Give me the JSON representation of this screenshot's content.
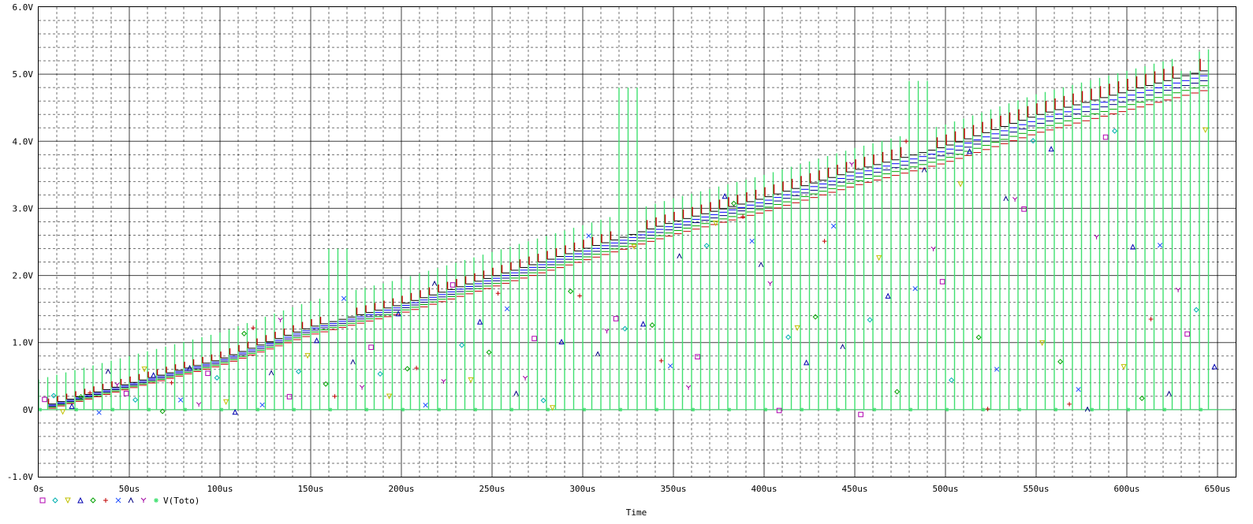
{
  "chart_data": {
    "type": "line",
    "xlabel": "Time",
    "ylabel": "",
    "xlim": [
      0,
      660
    ],
    "ylim": [
      -1.0,
      6.0
    ],
    "grid": true,
    "x_ticks": [
      0,
      50,
      100,
      150,
      200,
      250,
      300,
      350,
      400,
      450,
      500,
      550,
      600,
      650
    ],
    "x_tick_labels": [
      "0s",
      "50us",
      "100us",
      "150us",
      "200us",
      "250us",
      "300us",
      "350us",
      "400us",
      "450us",
      "500us",
      "550us",
      "600us",
      "650us"
    ],
    "y_ticks": [
      -1.0,
      0.0,
      1.0,
      2.0,
      3.0,
      4.0,
      5.0,
      6.0
    ],
    "y_tick_labels": [
      "-1.0V",
      "0V",
      "1.0V",
      "2.0V",
      "3.0V",
      "4.0V",
      "5.0V",
      "6.0V"
    ],
    "legend_position": "bottom-left",
    "series": [
      {
        "name": "",
        "symbol": "square",
        "color": "#b000b0"
      },
      {
        "name": "",
        "symbol": "diamond",
        "color": "#00b0b0"
      },
      {
        "name": "",
        "symbol": "triangle-down",
        "color": "#c0c000"
      },
      {
        "name": "",
        "symbol": "triangle-up",
        "color": "#0000b0"
      },
      {
        "name": "",
        "symbol": "diamond",
        "color": "#00a000"
      },
      {
        "name": "",
        "symbol": "plus",
        "color": "#c00000"
      },
      {
        "name": "",
        "symbol": "x",
        "color": "#2050ff"
      },
      {
        "name": "",
        "symbol": "lambda",
        "color": "#000080"
      },
      {
        "name": "",
        "symbol": "y",
        "color": "#a000a0"
      },
      {
        "name": "V(Toto)",
        "symbol": "star",
        "color": "#40e070"
      }
    ],
    "waveform": {
      "pulse_period_us": 5,
      "staircase_start_V": 0.0,
      "staircase_end_V": 4.92,
      "staircase_end_us": 645,
      "overshoot_regions": [
        {
          "from_us": 160,
          "to_us": 170,
          "peak_V": 2.4
        },
        {
          "from_us": 320,
          "to_us": 330,
          "peak_V": 4.8
        },
        {
          "from_us": 480,
          "to_us": 490,
          "peak_V": 4.9
        },
        {
          "from_us": 630,
          "to_us": 635,
          "peak_V": 5.05
        }
      ],
      "glitch_markers_V": [
        0.0,
        0.4,
        0.8,
        1.2,
        1.6,
        2.0,
        2.4,
        2.8,
        3.2,
        3.6,
        4.0,
        4.4
      ]
    },
    "step_level_points": [
      {
        "x": 0,
        "y": 0.0
      },
      {
        "x": 50,
        "y": 0.35
      },
      {
        "x": 100,
        "y": 0.7
      },
      {
        "x": 150,
        "y": 1.17
      },
      {
        "x": 200,
        "y": 1.5
      },
      {
        "x": 250,
        "y": 1.9
      },
      {
        "x": 300,
        "y": 2.3
      },
      {
        "x": 350,
        "y": 2.7
      },
      {
        "x": 400,
        "y": 3.05
      },
      {
        "x": 450,
        "y": 3.45
      },
      {
        "x": 500,
        "y": 3.8
      },
      {
        "x": 550,
        "y": 4.25
      },
      {
        "x": 600,
        "y": 4.6
      },
      {
        "x": 645,
        "y": 4.92
      }
    ]
  },
  "colors": {
    "trace": "#40e070",
    "step_lines": [
      "#c00000",
      "#00a000",
      "#000080",
      "#0000ff",
      "#000000"
    ],
    "grid": "#000000",
    "background": "#ffffff"
  }
}
